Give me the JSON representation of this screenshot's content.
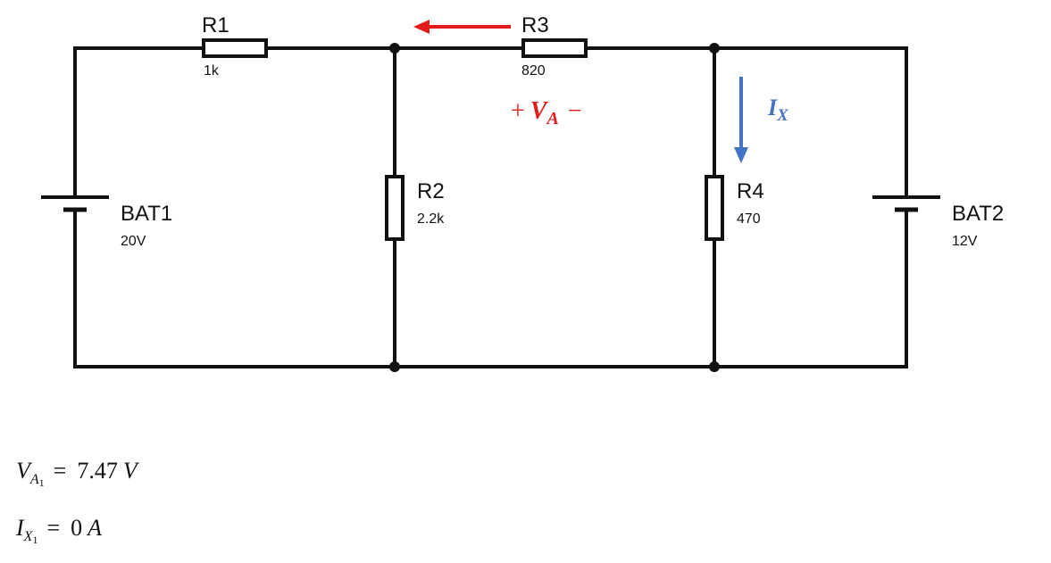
{
  "circuit": {
    "r1": {
      "name": "R1",
      "value": "1k"
    },
    "r2": {
      "name": "R2",
      "value": "2.2k"
    },
    "r3": {
      "name": "R3",
      "value": "820"
    },
    "r4": {
      "name": "R4",
      "value": "470"
    },
    "bat1": {
      "name": "BAT1",
      "value": "20V"
    },
    "bat2": {
      "name": "BAT2",
      "value": "12V"
    },
    "va_label": {
      "plus": "+",
      "symbol": "V",
      "sub": "A",
      "minus": "−"
    },
    "ix_label": {
      "symbol": "I",
      "sub": "X"
    }
  },
  "results": {
    "va": {
      "symbol": "V",
      "sub": "A",
      "subsub": "1",
      "eq": "=",
      "value": "7.47",
      "unit": "V"
    },
    "ix": {
      "symbol": "I",
      "sub": "X",
      "subsub": "1",
      "eq": "=",
      "value": "0",
      "unit": "A"
    }
  },
  "colors": {
    "wire": "#111111",
    "red_arrow": "#e31b1b",
    "blue_arrow": "#4472c4"
  }
}
